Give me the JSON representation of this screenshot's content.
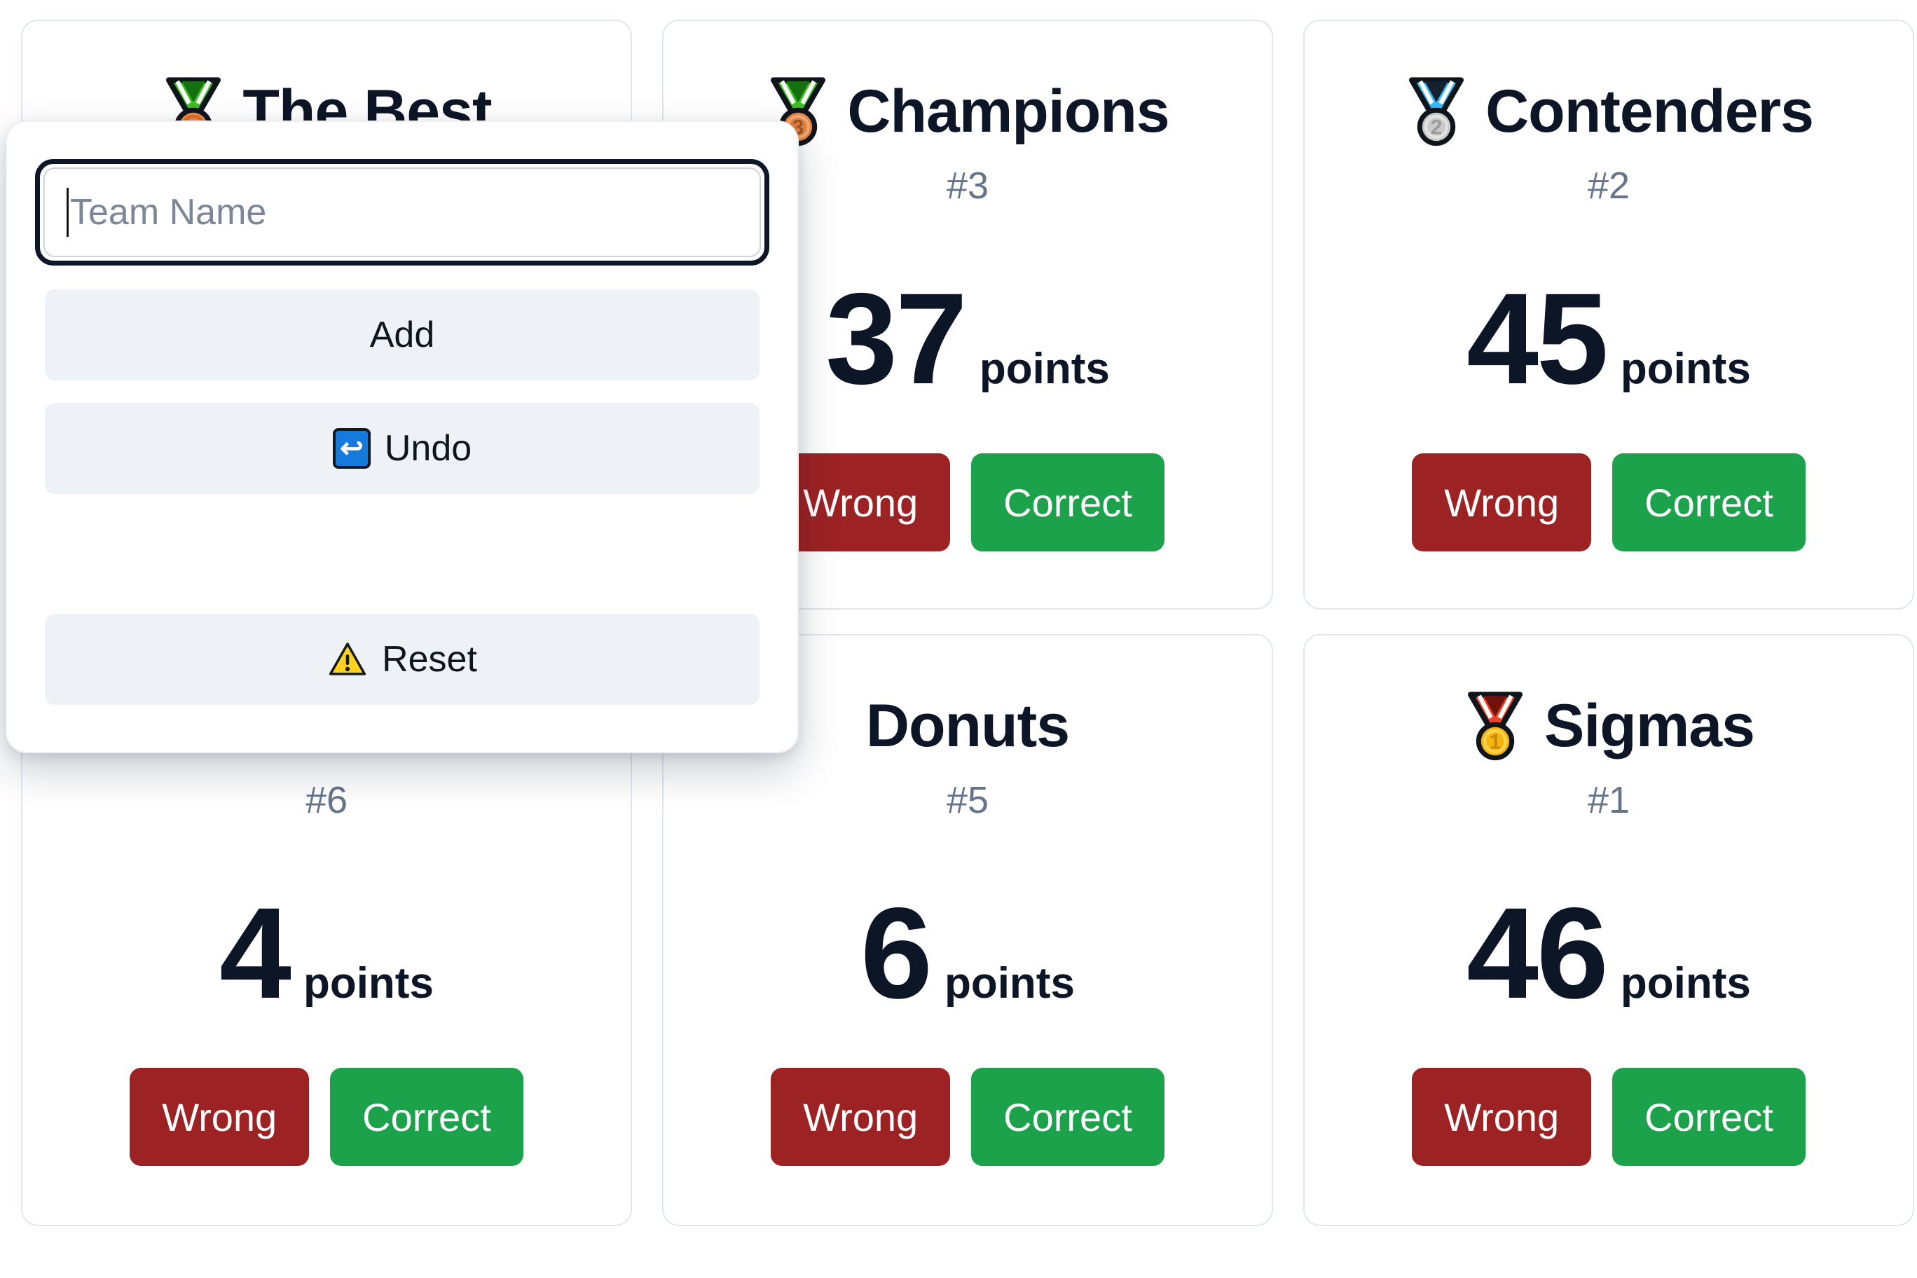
{
  "popup": {
    "team_name_input": {
      "placeholder": "Team Name",
      "value": ""
    },
    "add_button": "Add",
    "undo_button": "Undo",
    "reset_button": "Reset"
  },
  "card_labels": {
    "points_suffix": "points",
    "wrong_button": "Wrong",
    "correct_button": "Correct"
  },
  "colors": {
    "accent_wrong": "#9d2223",
    "accent_correct": "#1ba24b",
    "title_text": "#0d1626",
    "rank_text": "#64748b",
    "popup_button_bg": "#eef1f6",
    "card_border": "#e2e7ef",
    "input_border": "#0e1627",
    "undo_icon_blue": "#147bdd",
    "warning_yellow": "#ffd21f"
  },
  "medals": {
    "sports": {
      "ribbon": "#3fbe23",
      "ribbon_center": "#15700f",
      "disc": "#f08a3e",
      "inner": "#db6f28",
      "number": "",
      "number_color": ""
    },
    "bronze": {
      "ribbon": "#3fbe23",
      "ribbon_center": "#15700f",
      "disc": "#e2853e",
      "inner": "#f2a873",
      "number": "3",
      "number_color": "#a3552a"
    },
    "silver": {
      "ribbon": "#36b7f2",
      "ribbon_center": "#16202e",
      "disc": "#c9c9c9",
      "inner": "#e2e2e2",
      "number": "2",
      "number_color": "#9b9b9b"
    },
    "gold": {
      "ribbon": "#e8432a",
      "ribbon_center": "#701208",
      "disc": "#f5b50e",
      "inner": "#ffd34d",
      "number": "1",
      "number_color": "#c8860b"
    }
  },
  "teams": [
    {
      "name": "The Best",
      "medal": "sports",
      "rank": "",
      "points": "",
      "show": {
        "title": true,
        "rank": false,
        "points": false,
        "buttons": false
      }
    },
    {
      "name": "Champions",
      "medal": "bronze",
      "rank": "#3",
      "points": "37",
      "show": {
        "title": true,
        "rank": true,
        "points": true,
        "buttons": true
      }
    },
    {
      "name": "Contenders",
      "medal": "silver",
      "rank": "#2",
      "points": "45",
      "show": {
        "title": true,
        "rank": true,
        "points": true,
        "buttons": true
      }
    },
    {
      "name": "",
      "medal": "",
      "rank": "#6",
      "points": "4",
      "show": {
        "title": false,
        "rank": true,
        "points": true,
        "buttons": true
      }
    },
    {
      "name": "Donuts",
      "medal": "",
      "rank": "#5",
      "points": "6",
      "show": {
        "title": true,
        "rank": true,
        "points": true,
        "buttons": true
      }
    },
    {
      "name": "Sigmas",
      "medal": "gold",
      "rank": "#1",
      "points": "46",
      "show": {
        "title": true,
        "rank": true,
        "points": true,
        "buttons": true
      }
    }
  ]
}
